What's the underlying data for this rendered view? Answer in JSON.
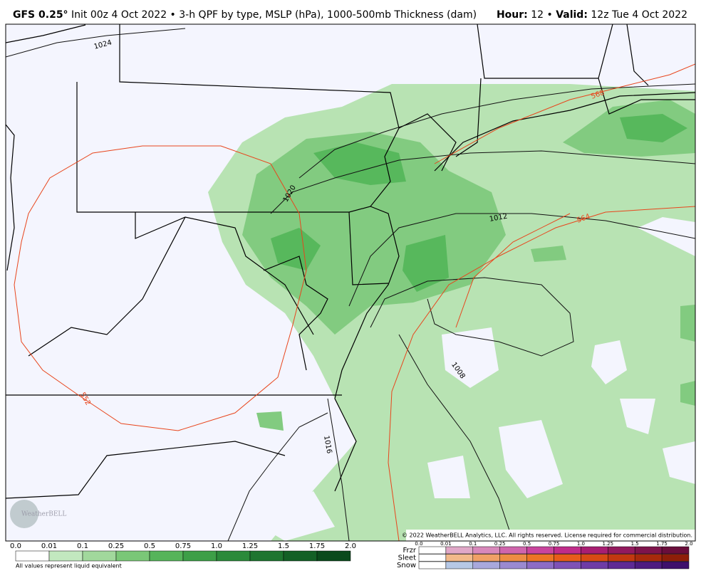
{
  "header": {
    "title_model": "GFS 0.25°",
    "title_rest": "Init 00z 4 Oct 2022 • 3-h QPF by type, MSLP (hPa), 1000-500mb Thickness (dam)",
    "hour_label": "Hour:",
    "hour": "12 •",
    "valid_label": "Valid:",
    "valid": "12z Tue 4 Oct 2022"
  },
  "map": {
    "isobar_labels": [
      "1024",
      "1020",
      "1016",
      "1012",
      "1008"
    ],
    "thickness_labels": [
      "568",
      "564",
      "552"
    ],
    "logo": "WeatherBELL",
    "copyright": "© 2022 WeatherBELL Analytics, LLC. All rights reserved. License required for commercial distribution."
  },
  "legend": {
    "rain_ticks": [
      "0.0",
      "0.01",
      "0.1",
      "0.25",
      "0.5",
      "0.75",
      "1.0",
      "1.25",
      "1.5",
      "1.75",
      "2.0"
    ],
    "note": "All values represent liquid equivalent",
    "types": [
      "Frzr",
      "Sleet",
      "Snow"
    ],
    "type_ticks": [
      "0.0",
      "0.01",
      "0.1",
      "0.25",
      "0.5",
      "0.75",
      "1.0",
      "1.25",
      "1.5",
      "1.75",
      "2.0"
    ]
  }
}
